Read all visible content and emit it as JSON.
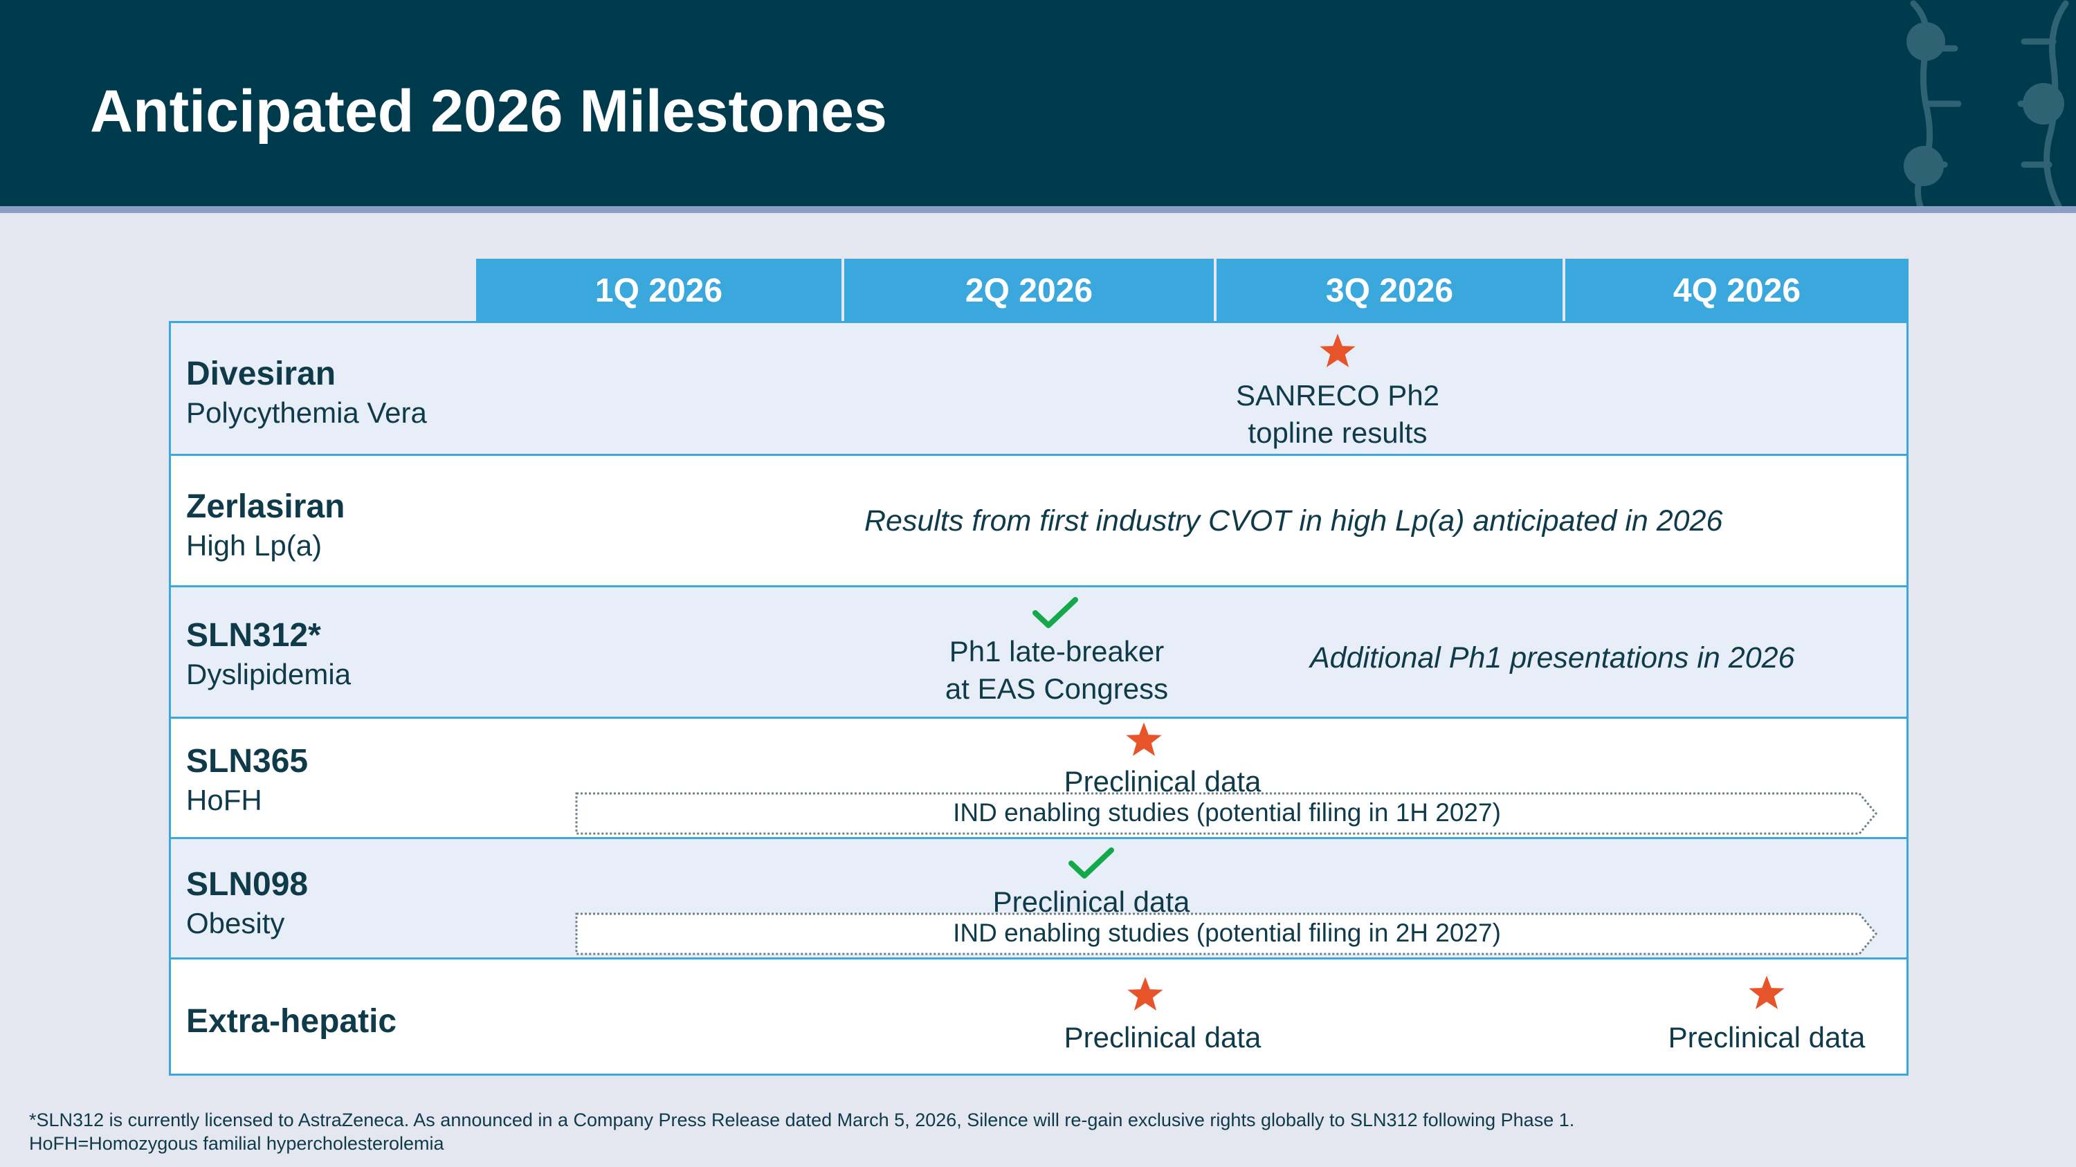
{
  "header": {
    "title": "Anticipated 2026 Milestones"
  },
  "quarters": [
    "1Q 2026",
    "2Q 2026",
    "3Q 2026",
    "4Q 2026"
  ],
  "rows": {
    "divesiran": {
      "name": "Divesiran",
      "indication": "Polycythemia Vera",
      "milestone_icon": "star-icon",
      "milestone_line1": "SANRECO Ph2",
      "milestone_line2": "topline results"
    },
    "zerlasiran": {
      "name": "Zerlasiran",
      "indication": "High Lp(a)",
      "note": "Results from first industry CVOT in high Lp(a) anticipated in 2026"
    },
    "sln312": {
      "name": "SLN312*",
      "indication": "Dyslipidemia",
      "milestone_icon": "checkmark-icon",
      "milestone_line1": "Ph1 late-breaker",
      "milestone_line2": "at EAS Congress",
      "note": "Additional Ph1 presentations in 2026"
    },
    "sln365": {
      "name": "SLN365",
      "indication": "HoFH",
      "milestone_icon": "star-icon",
      "milestone": "Preclinical data",
      "arrow_label": "IND enabling studies (potential filing in 1H 2027)"
    },
    "sln098": {
      "name": "SLN098",
      "indication": "Obesity",
      "milestone_icon": "checkmark-icon",
      "milestone": "Preclinical data",
      "arrow_label": "IND enabling studies (potential filing in 2H 2027)"
    },
    "extrahepatic": {
      "name": "Extra-hepatic",
      "milestone_2q_icon": "star-icon",
      "milestone_2q": "Preclinical data",
      "milestone_4q_icon": "star-icon",
      "milestone_4q": "Preclinical data"
    }
  },
  "footnotes": {
    "line1": "*SLN312 is currently licensed to AstraZeneca. As announced in a Company Press Release dated March 5, 2026, Silence will re-gain exclusive rights globally to SLN312 following Phase 1.",
    "line2": "HoFH=Homozygous familial hypercholesterolemia"
  },
  "colors": {
    "header_bg": "#003a4d",
    "quarter_bg": "#3aa8dd",
    "star": "#e8542a",
    "check": "#13a84a",
    "text": "#0e3a4a"
  }
}
